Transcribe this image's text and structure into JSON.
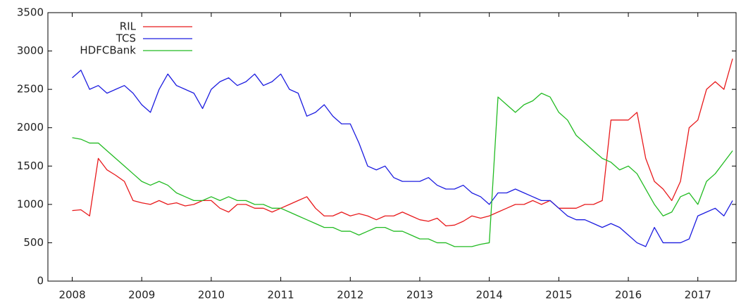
{
  "chart_data": {
    "type": "line",
    "x": [
      2008,
      2008.125,
      2008.25,
      2008.375,
      2008.5,
      2008.625,
      2008.75,
      2008.875,
      2009,
      2009.125,
      2009.25,
      2009.375,
      2009.5,
      2009.625,
      2009.75,
      2009.875,
      2010,
      2010.125,
      2010.25,
      2010.375,
      2010.5,
      2010.625,
      2010.75,
      2010.875,
      2011,
      2011.125,
      2011.25,
      2011.375,
      2011.5,
      2011.625,
      2011.75,
      2011.875,
      2012,
      2012.125,
      2012.25,
      2012.375,
      2012.5,
      2012.625,
      2012.75,
      2012.875,
      2013,
      2013.125,
      2013.25,
      2013.375,
      2013.5,
      2013.625,
      2013.75,
      2013.875,
      2014,
      2014.125,
      2014.25,
      2014.375,
      2014.5,
      2014.625,
      2014.75,
      2014.875,
      2015,
      2015.125,
      2015.25,
      2015.375,
      2015.5,
      2015.625,
      2015.75,
      2015.875,
      2016,
      2016.125,
      2016.25,
      2016.375,
      2016.5,
      2016.625,
      2016.75,
      2016.875,
      2017,
      2017.125,
      2017.25,
      2017.375,
      2017.5
    ],
    "series": [
      {
        "name": "RIL",
        "color": "#e8191b",
        "values": [
          920,
          930,
          850,
          1600,
          1450,
          1380,
          1300,
          1050,
          1020,
          1000,
          1050,
          1000,
          1020,
          980,
          1000,
          1050,
          1050,
          950,
          900,
          1000,
          1000,
          950,
          950,
          900,
          950,
          1000,
          1050,
          1100,
          950,
          850,
          850,
          900,
          850,
          880,
          850,
          800,
          850,
          850,
          900,
          850,
          800,
          780,
          820,
          720,
          730,
          780,
          850,
          820,
          850,
          900,
          950,
          1000,
          1000,
          1050,
          1000,
          1050,
          950,
          950,
          950,
          1000,
          1000,
          1050,
          2100,
          2100,
          2100,
          2200,
          1600,
          1300,
          1200,
          1050,
          1300,
          2000,
          2100,
          2500,
          2600,
          2500,
          2900
        ]
      },
      {
        "name": "TCS",
        "color": "#1c1ce0",
        "values": [
          2650,
          2750,
          2500,
          2550,
          2450,
          2500,
          2550,
          2450,
          2300,
          2200,
          2500,
          2700,
          2550,
          2500,
          2450,
          2250,
          2500,
          2600,
          2650,
          2550,
          2600,
          2700,
          2550,
          2600,
          2700,
          2500,
          2450,
          2150,
          2200,
          2300,
          2150,
          2050,
          2050,
          1800,
          1500,
          1450,
          1500,
          1350,
          1300,
          1300,
          1300,
          1350,
          1250,
          1200,
          1200,
          1250,
          1150,
          1100,
          1000,
          1150,
          1150,
          1200,
          1150,
          1100,
          1050,
          1050,
          950,
          850,
          800,
          800,
          750,
          700,
          750,
          700,
          600,
          500,
          450,
          700,
          500,
          500,
          500,
          550,
          850,
          900,
          950,
          850,
          1050
        ]
      },
      {
        "name": "HDFCBank",
        "color": "#22bb22",
        "values": [
          1870,
          1850,
          1800,
          1800,
          1700,
          1600,
          1500,
          1400,
          1300,
          1250,
          1300,
          1250,
          1150,
          1100,
          1050,
          1050,
          1100,
          1050,
          1100,
          1050,
          1050,
          1000,
          1000,
          950,
          950,
          900,
          850,
          800,
          750,
          700,
          700,
          650,
          650,
          600,
          650,
          700,
          700,
          650,
          650,
          600,
          550,
          550,
          500,
          500,
          450,
          450,
          450,
          480,
          500,
          2400,
          2300,
          2200,
          2300,
          2350,
          2450,
          2400,
          2200,
          2100,
          1900,
          1800,
          1700,
          1600,
          1550,
          1450,
          1500,
          1400,
          1200,
          1000,
          850,
          900,
          1100,
          1150,
          1000,
          1300,
          1400,
          1550,
          1700
        ]
      }
    ],
    "xlim": [
      2007.65,
      2017.55
    ],
    "xticks": [
      2008,
      2009,
      2010,
      2011,
      2012,
      2013,
      2014,
      2015,
      2016,
      2017
    ],
    "ylim": [
      0,
      3500
    ],
    "yticks": [
      0,
      500,
      1000,
      1500,
      2000,
      2500,
      3000,
      3500
    ],
    "legend": "top-left"
  }
}
